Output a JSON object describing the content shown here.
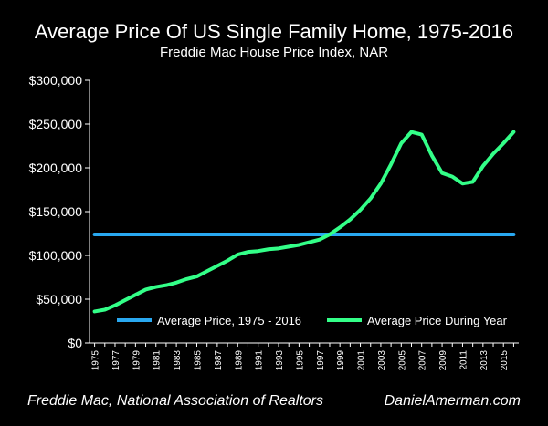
{
  "chart_data": {
    "type": "line",
    "title": "Average Price Of US Single Family Home, 1975-2016",
    "subtitle": "Freddie Mac House Price Index, NAR",
    "x": [
      1975,
      1976,
      1977,
      1978,
      1979,
      1980,
      1981,
      1982,
      1983,
      1984,
      1985,
      1986,
      1987,
      1988,
      1989,
      1990,
      1991,
      1992,
      1993,
      1994,
      1995,
      1996,
      1997,
      1998,
      1999,
      2000,
      2001,
      2002,
      2003,
      2004,
      2005,
      2006,
      2007,
      2008,
      2009,
      2010,
      2011,
      2012,
      2013,
      2014,
      2015,
      2016
    ],
    "x_tick_labels": [
      "1975",
      "1977",
      "1979",
      "1981",
      "1983",
      "1985",
      "1987",
      "1989",
      "1991",
      "1993",
      "1995",
      "1997",
      "1999",
      "2001",
      "2003",
      "2005",
      "2007",
      "2009",
      "2011",
      "2013",
      "2015"
    ],
    "y_tick_labels": [
      "$0",
      "$50,000",
      "$100,000",
      "$150,000",
      "$200,000",
      "$250,000",
      "$300,000"
    ],
    "ylim": [
      0,
      300000
    ],
    "grid": false,
    "legend_position": "bottom",
    "series": [
      {
        "name": "Average Price,  1975 - 2016",
        "color": "#29a8f0",
        "values": [
          124000,
          124000,
          124000,
          124000,
          124000,
          124000,
          124000,
          124000,
          124000,
          124000,
          124000,
          124000,
          124000,
          124000,
          124000,
          124000,
          124000,
          124000,
          124000,
          124000,
          124000,
          124000,
          124000,
          124000,
          124000,
          124000,
          124000,
          124000,
          124000,
          124000,
          124000,
          124000,
          124000,
          124000,
          124000,
          124000,
          124000,
          124000,
          124000,
          124000,
          124000,
          124000
        ]
      },
      {
        "name": "Average Price During Year",
        "color": "#33ff88",
        "values": [
          36000,
          38000,
          43000,
          49000,
          55000,
          61000,
          64000,
          66000,
          69000,
          73000,
          76000,
          82000,
          88000,
          94000,
          101000,
          104000,
          105000,
          107000,
          108000,
          110000,
          112000,
          115000,
          118000,
          124000,
          132000,
          141000,
          152000,
          165000,
          182000,
          204000,
          228000,
          241000,
          238000,
          214000,
          194000,
          190000,
          182000,
          184000,
          202000,
          216000,
          228000,
          241000
        ]
      }
    ]
  },
  "footer": {
    "source": "Freddie Mac, National Association of Realtors",
    "website": "DanielAmerman.com"
  }
}
